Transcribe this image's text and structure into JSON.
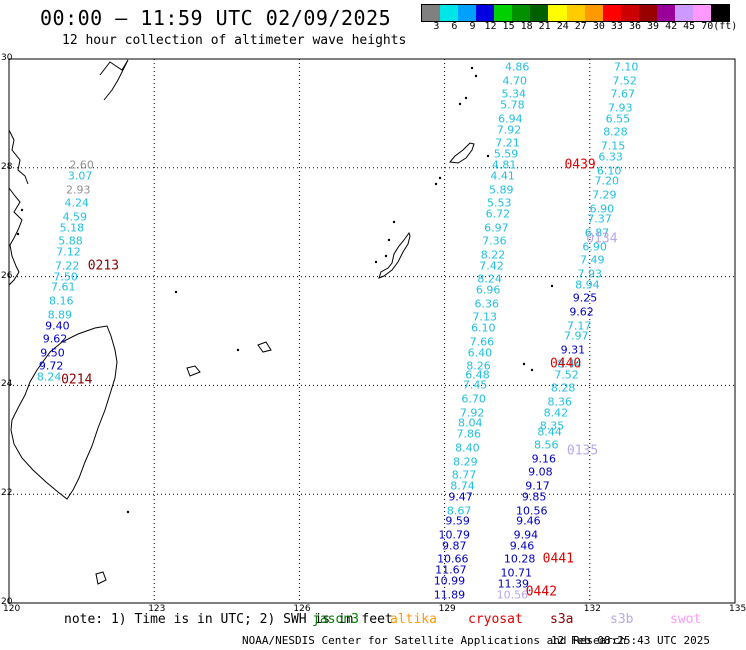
{
  "header": {
    "title": "00:00 – 11:59 UTC 02/09/2025",
    "subtitle": "12 hour collection of altimeter wave heights"
  },
  "legend": {
    "colors": [
      "#808080",
      "#00e5e5",
      "#00a0ff",
      "#0000e0",
      "#00d000",
      "#009000",
      "#006000",
      "#ffff00",
      "#ffcc00",
      "#ff9900",
      "#ff0000",
      "#cc0000",
      "#990000",
      "#990099",
      "#cc99ff",
      "#ff99ff",
      "#000000"
    ],
    "labels": [
      "3",
      "6",
      "9",
      "12",
      "15",
      "18",
      "21",
      "24",
      "27",
      "30",
      "33",
      "36",
      "39",
      "42",
      "45",
      "70",
      "(ft)"
    ]
  },
  "map": {
    "lon_ticks": [
      "120",
      "123",
      "126",
      "129",
      "132",
      "135"
    ],
    "lat_ticks": [
      "30",
      "28",
      "26",
      "24",
      "22",
      "20"
    ],
    "lon_range": [
      120,
      135
    ],
    "lat_range": [
      20,
      30
    ]
  },
  "passes": [
    {
      "label": "0213",
      "lon": 121.95,
      "lat": 26.2,
      "color": "#8b0000"
    },
    {
      "label": "0214",
      "lon": 121.4,
      "lat": 24.1,
      "color": "#8b0000"
    },
    {
      "label": "0439",
      "lon": 131.8,
      "lat": 28.05,
      "color": "#e00000"
    },
    {
      "label": "0440",
      "lon": 131.5,
      "lat": 24.4,
      "color": "#e00000"
    },
    {
      "label": "0441",
      "lon": 131.35,
      "lat": 20.8,
      "color": "#e00000"
    },
    {
      "label": "0442",
      "lon": 131.0,
      "lat": 20.2,
      "color": "#e00000"
    },
    {
      "label": "0134",
      "lon": 132.25,
      "lat": 26.7,
      "color": "#b8a8e8"
    },
    {
      "label": "0135",
      "lon": 131.85,
      "lat": 22.8,
      "color": "#b8a8e8"
    }
  ],
  "points": [
    {
      "v": "2.60",
      "lon": 121.5,
      "lat": 28.05,
      "c": "#909090"
    },
    {
      "v": "3.07",
      "lon": 121.47,
      "lat": 27.85,
      "c": "#20c0e0"
    },
    {
      "v": "2.93",
      "lon": 121.43,
      "lat": 27.6,
      "c": "#909090"
    },
    {
      "v": "4.24",
      "lon": 121.4,
      "lat": 27.35,
      "c": "#20c0e0"
    },
    {
      "v": "4.59",
      "lon": 121.36,
      "lat": 27.1,
      "c": "#20c0e0"
    },
    {
      "v": "5.18",
      "lon": 121.3,
      "lat": 26.9,
      "c": "#20c0e0"
    },
    {
      "v": "5.88",
      "lon": 121.27,
      "lat": 26.65,
      "c": "#20c0e0"
    },
    {
      "v": "7.12",
      "lon": 121.23,
      "lat": 26.45,
      "c": "#20c0e0"
    },
    {
      "v": "7.22",
      "lon": 121.2,
      "lat": 26.2,
      "c": "#20c0e0"
    },
    {
      "v": "7.50",
      "lon": 121.17,
      "lat": 26.0,
      "c": "#20c0e0"
    },
    {
      "v": "7.61",
      "lon": 121.12,
      "lat": 25.8,
      "c": "#20c0e0"
    },
    {
      "v": "8.16",
      "lon": 121.08,
      "lat": 25.55,
      "c": "#20c0e0"
    },
    {
      "v": "8.89",
      "lon": 121.05,
      "lat": 25.3,
      "c": "#20c0e0"
    },
    {
      "v": "9.40",
      "lon": 121.0,
      "lat": 25.1,
      "c": "#0000c0"
    },
    {
      "v": "9.62",
      "lon": 120.95,
      "lat": 24.85,
      "c": "#0000c0"
    },
    {
      "v": "9.50",
      "lon": 120.9,
      "lat": 24.6,
      "c": "#0000c0"
    },
    {
      "v": "9.72",
      "lon": 120.87,
      "lat": 24.35,
      "c": "#0000c0"
    },
    {
      "v": "8.24",
      "lon": 120.83,
      "lat": 24.15,
      "c": "#20c0e0"
    },
    {
      "v": "4.86",
      "lon": 130.5,
      "lat": 29.85,
      "c": "#20c0e0"
    },
    {
      "v": "4.70",
      "lon": 130.45,
      "lat": 29.6,
      "c": "#20c0e0"
    },
    {
      "v": "5.34",
      "lon": 130.43,
      "lat": 29.35,
      "c": "#20c0e0"
    },
    {
      "v": "5.78",
      "lon": 130.4,
      "lat": 29.15,
      "c": "#20c0e0"
    },
    {
      "v": "6.94",
      "lon": 130.36,
      "lat": 28.9,
      "c": "#20c0e0"
    },
    {
      "v": "7.92",
      "lon": 130.33,
      "lat": 28.7,
      "c": "#20c0e0"
    },
    {
      "v": "7.21",
      "lon": 130.3,
      "lat": 28.45,
      "c": "#20c0e0"
    },
    {
      "v": "5.59",
      "lon": 130.27,
      "lat": 28.25,
      "c": "#20c0e0"
    },
    {
      "v": "4.81",
      "lon": 130.23,
      "lat": 28.05,
      "c": "#20c0e0"
    },
    {
      "v": "4.41",
      "lon": 130.2,
      "lat": 27.85,
      "c": "#20c0e0"
    },
    {
      "v": "5.89",
      "lon": 130.17,
      "lat": 27.6,
      "c": "#20c0e0"
    },
    {
      "v": "5.53",
      "lon": 130.13,
      "lat": 27.35,
      "c": "#20c0e0"
    },
    {
      "v": "6.72",
      "lon": 130.1,
      "lat": 27.15,
      "c": "#20c0e0"
    },
    {
      "v": "6.97",
      "lon": 130.07,
      "lat": 26.9,
      "c": "#20c0e0"
    },
    {
      "v": "7.36",
      "lon": 130.03,
      "lat": 26.65,
      "c": "#20c0e0"
    },
    {
      "v": "8.22",
      "lon": 130.0,
      "lat": 26.4,
      "c": "#20c0e0"
    },
    {
      "v": "7.42",
      "lon": 129.97,
      "lat": 26.2,
      "c": "#20c0e0"
    },
    {
      "v": "8.24",
      "lon": 129.93,
      "lat": 25.95,
      "c": "#20c0e0"
    },
    {
      "v": "6.96",
      "lon": 129.9,
      "lat": 25.75,
      "c": "#20c0e0"
    },
    {
      "v": "6.36",
      "lon": 129.87,
      "lat": 25.5,
      "c": "#20c0e0"
    },
    {
      "v": "7.13",
      "lon": 129.83,
      "lat": 25.25,
      "c": "#20c0e0"
    },
    {
      "v": "6.10",
      "lon": 129.8,
      "lat": 25.05,
      "c": "#20c0e0"
    },
    {
      "v": "7.66",
      "lon": 129.77,
      "lat": 24.8,
      "c": "#20c0e0"
    },
    {
      "v": "6.40",
      "lon": 129.73,
      "lat": 24.6,
      "c": "#20c0e0"
    },
    {
      "v": "8.26",
      "lon": 129.7,
      "lat": 24.35,
      "c": "#20c0e0"
    },
    {
      "v": "6.48",
      "lon": 129.68,
      "lat": 24.2,
      "c": "#20c0e0"
    },
    {
      "v": "7.45",
      "lon": 129.63,
      "lat": 24.0,
      "c": "#20c0e0"
    },
    {
      "v": "6.70",
      "lon": 129.6,
      "lat": 23.75,
      "c": "#20c0e0"
    },
    {
      "v": "7.92",
      "lon": 129.57,
      "lat": 23.5,
      "c": "#20c0e0"
    },
    {
      "v": "8.04",
      "lon": 129.53,
      "lat": 23.3,
      "c": "#20c0e0"
    },
    {
      "v": "7.86",
      "lon": 129.5,
      "lat": 23.1,
      "c": "#20c0e0"
    },
    {
      "v": "8.40",
      "lon": 129.47,
      "lat": 22.85,
      "c": "#20c0e0"
    },
    {
      "v": "8.29",
      "lon": 129.43,
      "lat": 22.6,
      "c": "#20c0e0"
    },
    {
      "v": "8.77",
      "lon": 129.4,
      "lat": 22.35,
      "c": "#20c0e0"
    },
    {
      "v": "8.74",
      "lon": 129.37,
      "lat": 22.15,
      "c": "#20c0e0"
    },
    {
      "v": "9.47",
      "lon": 129.33,
      "lat": 21.95,
      "c": "#0000c0"
    },
    {
      "v": "8.67",
      "lon": 129.3,
      "lat": 21.7,
      "c": "#20c0e0"
    },
    {
      "v": "9.59",
      "lon": 129.27,
      "lat": 21.5,
      "c": "#0000c0"
    },
    {
      "v": "10.79",
      "lon": 129.2,
      "lat": 21.25,
      "c": "#0000c0"
    },
    {
      "v": "9.87",
      "lon": 129.2,
      "lat": 21.05,
      "c": "#0000c0"
    },
    {
      "v": "10.66",
      "lon": 129.17,
      "lat": 20.8,
      "c": "#0000c0"
    },
    {
      "v": "11.67",
      "lon": 129.13,
      "lat": 20.6,
      "c": "#0000c0"
    },
    {
      "v": "10.99",
      "lon": 129.1,
      "lat": 20.4,
      "c": "#0000c0"
    },
    {
      "v": "11.89",
      "lon": 129.1,
      "lat": 20.15,
      "c": "#0000c0"
    },
    {
      "v": "7.10",
      "lon": 132.75,
      "lat": 29.85,
      "c": "#20c0e0"
    },
    {
      "v": "7.52",
      "lon": 132.72,
      "lat": 29.6,
      "c": "#20c0e0"
    },
    {
      "v": "7.67",
      "lon": 132.68,
      "lat": 29.35,
      "c": "#20c0e0"
    },
    {
      "v": "7.93",
      "lon": 132.63,
      "lat": 29.1,
      "c": "#20c0e0"
    },
    {
      "v": "6.55",
      "lon": 132.58,
      "lat": 28.9,
      "c": "#20c0e0"
    },
    {
      "v": "8.28",
      "lon": 132.53,
      "lat": 28.65,
      "c": "#20c0e0"
    },
    {
      "v": "7.15",
      "lon": 132.48,
      "lat": 28.4,
      "c": "#20c0e0"
    },
    {
      "v": "6.33",
      "lon": 132.43,
      "lat": 28.2,
      "c": "#20c0e0"
    },
    {
      "v": "6.10",
      "lon": 132.4,
      "lat": 27.95,
      "c": "#20c0e0"
    },
    {
      "v": "7.20",
      "lon": 132.35,
      "lat": 27.75,
      "c": "#20c0e0"
    },
    {
      "v": "7.29",
      "lon": 132.3,
      "lat": 27.5,
      "c": "#20c0e0"
    },
    {
      "v": "6.90",
      "lon": 132.25,
      "lat": 27.25,
      "c": "#20c0e0"
    },
    {
      "v": "7.37",
      "lon": 132.2,
      "lat": 27.05,
      "c": "#20c0e0"
    },
    {
      "v": "6.87",
      "lon": 132.15,
      "lat": 26.8,
      "c": "#20c0e0"
    },
    {
      "v": "6.90",
      "lon": 132.1,
      "lat": 26.55,
      "c": "#20c0e0"
    },
    {
      "v": "7.49",
      "lon": 132.05,
      "lat": 26.3,
      "c": "#20c0e0"
    },
    {
      "v": "7.93",
      "lon": 132.0,
      "lat": 26.05,
      "c": "#20c0e0"
    },
    {
      "v": "8.94",
      "lon": 131.95,
      "lat": 25.85,
      "c": "#20c0e0"
    },
    {
      "v": "9.25",
      "lon": 131.9,
      "lat": 25.6,
      "c": "#0000c0"
    },
    {
      "v": "9.62",
      "lon": 131.83,
      "lat": 25.35,
      "c": "#0000c0"
    },
    {
      "v": "7.17",
      "lon": 131.78,
      "lat": 25.1,
      "c": "#20c0e0"
    },
    {
      "v": "7.97",
      "lon": 131.72,
      "lat": 24.9,
      "c": "#20c0e0"
    },
    {
      "v": "9.31",
      "lon": 131.65,
      "lat": 24.65,
      "c": "#0000c0"
    },
    {
      "v": "8.44",
      "lon": 131.58,
      "lat": 24.4,
      "c": "#20c0e0"
    },
    {
      "v": "7.52",
      "lon": 131.52,
      "lat": 24.2,
      "c": "#20c0e0"
    },
    {
      "v": "8.28",
      "lon": 131.45,
      "lat": 23.95,
      "c": "#20c0e0"
    },
    {
      "v": "8.36",
      "lon": 131.38,
      "lat": 23.7,
      "c": "#20c0e0"
    },
    {
      "v": "8.42",
      "lon": 131.3,
      "lat": 23.5,
      "c": "#20c0e0"
    },
    {
      "v": "8.35",
      "lon": 131.22,
      "lat": 23.25,
      "c": "#20c0e0"
    },
    {
      "v": "8.44",
      "lon": 131.17,
      "lat": 23.15,
      "c": "#20c0e0"
    },
    {
      "v": "8.56",
      "lon": 131.1,
      "lat": 22.9,
      "c": "#20c0e0"
    },
    {
      "v": "9.16",
      "lon": 131.05,
      "lat": 22.65,
      "c": "#0000c0"
    },
    {
      "v": "9.08",
      "lon": 130.98,
      "lat": 22.4,
      "c": "#0000c0"
    },
    {
      "v": "9.17",
      "lon": 130.92,
      "lat": 22.15,
      "c": "#0000c0"
    },
    {
      "v": "9.85",
      "lon": 130.85,
      "lat": 21.95,
      "c": "#0000c0"
    },
    {
      "v": "10.56",
      "lon": 130.8,
      "lat": 21.7,
      "c": "#0000c0"
    },
    {
      "v": "9.46",
      "lon": 130.73,
      "lat": 21.5,
      "c": "#0000c0"
    },
    {
      "v": "9.94",
      "lon": 130.68,
      "lat": 21.25,
      "c": "#0000c0"
    },
    {
      "v": "9.46",
      "lon": 130.6,
      "lat": 21.05,
      "c": "#0000c0"
    },
    {
      "v": "10.28",
      "lon": 130.55,
      "lat": 20.8,
      "c": "#0000c0"
    },
    {
      "v": "10.71",
      "lon": 130.48,
      "lat": 20.55,
      "c": "#0000c0"
    },
    {
      "v": "11.39",
      "lon": 130.42,
      "lat": 20.35,
      "c": "#0000c0"
    },
    {
      "v": "10.56",
      "lon": 130.4,
      "lat": 20.15,
      "c": "#b8a8e8"
    }
  ],
  "note": {
    "prefix": "note: 1) Time is in UTC; 2) SWH is in feet",
    "satellites": [
      {
        "name": "jason3",
        "color": "#008000"
      },
      {
        "name": "altika",
        "color": "#ff9900"
      },
      {
        "name": "cryosat",
        "color": "#e00000"
      },
      {
        "name": "s3a",
        "color": "#8b0000"
      },
      {
        "name": "s3b",
        "color": "#b8a8e8"
      },
      {
        "name": "swot",
        "color": "#ff99ff"
      }
    ]
  },
  "footer": {
    "credit": "NOAA/NESDIS Center for Satellite Applications and Research",
    "timestamp": "12 Feb 08:25:43 UTC 2025"
  }
}
